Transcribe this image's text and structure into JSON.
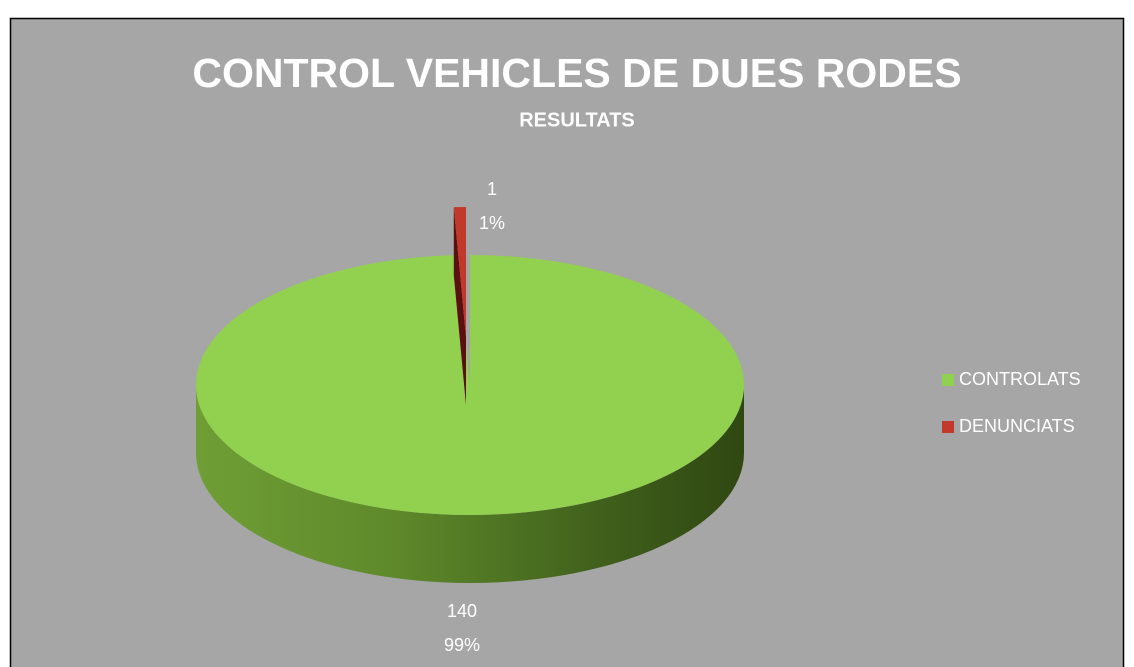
{
  "chart_data": {
    "type": "pie3d",
    "title": "CONTROL VEHICLES DE DUES RODES",
    "subtitle": "RESULTATS",
    "categories": [
      "CONTROLATS",
      "DENUNCIATS"
    ],
    "values": [
      140,
      1
    ],
    "percent_labels": [
      "99%",
      "1%"
    ],
    "colors": [
      "#92d050",
      "#c0392b"
    ],
    "legend": "right"
  }
}
